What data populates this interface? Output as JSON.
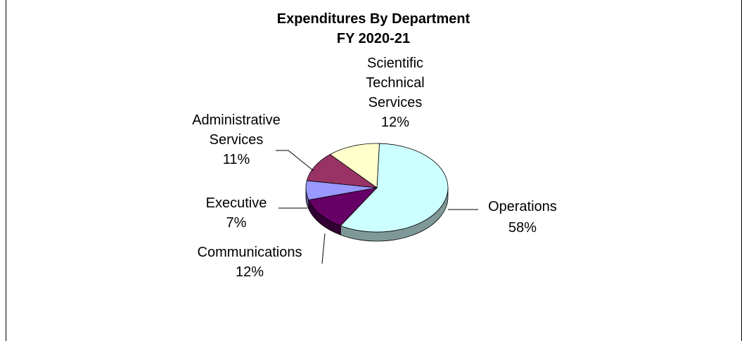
{
  "chart_data": {
    "type": "pie",
    "title": "Expenditures By Department",
    "subtitle": "FY 2020-21",
    "slices": [
      {
        "name": "Operations",
        "label_lines": [
          "Operations"
        ],
        "percent_label": "58%",
        "value": 58,
        "color": "#ccffff",
        "side_color": "#7f9999"
      },
      {
        "name": "Communications",
        "label_lines": [
          "Communications"
        ],
        "percent_label": "12%",
        "value": 12,
        "color": "#660066",
        "side_color": "#330033"
      },
      {
        "name": "Executive",
        "label_lines": [
          "Executive"
        ],
        "percent_label": "7%",
        "value": 7,
        "color": "#9999ff",
        "side_color": "#5c5c99"
      },
      {
        "name": "Administrative Services",
        "label_lines": [
          "Administrative",
          "Services"
        ],
        "percent_label": "11%",
        "value": 11,
        "color": "#993366",
        "side_color": "#5c1f3d"
      },
      {
        "name": "Scientific Technical Services",
        "label_lines": [
          "Scientific",
          "Technical",
          "Services"
        ],
        "percent_label": "12%",
        "value": 12,
        "color": "#ffffcc",
        "side_color": "#99997a"
      }
    ]
  }
}
